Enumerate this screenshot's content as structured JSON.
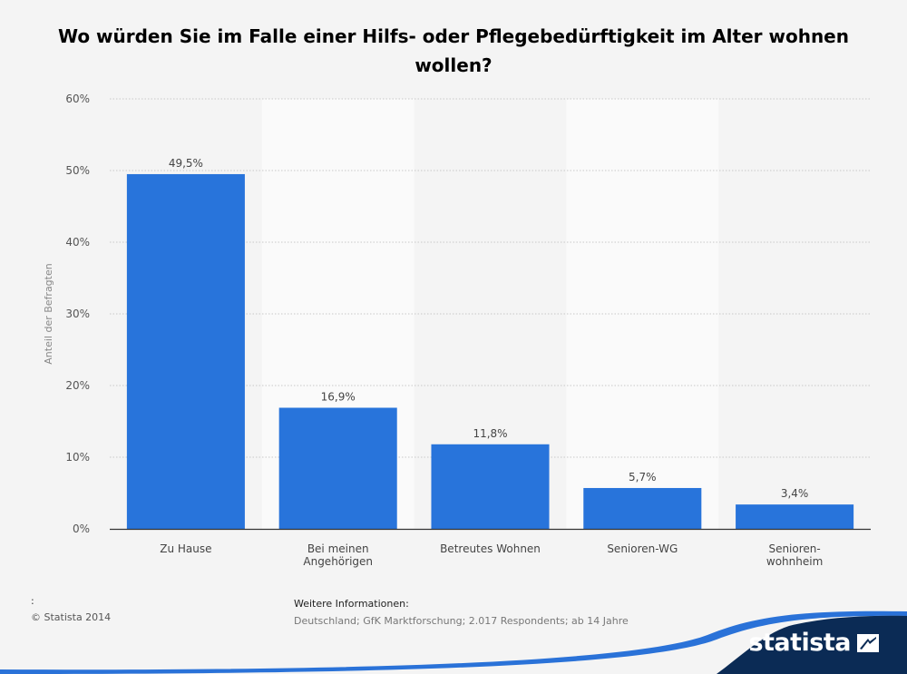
{
  "chart_data": {
    "type": "bar",
    "title": "Wo würden Sie im Falle einer Hilfs- oder Pflegebedürftigkeit im Alter wohnen wollen?",
    "ylabel": "Anteil der Befragten",
    "xlabel": "",
    "ylim": [
      0,
      60
    ],
    "yticks": [
      0,
      10,
      20,
      30,
      40,
      50,
      60
    ],
    "ytick_labels": [
      "0%",
      "10%",
      "20%",
      "30%",
      "40%",
      "50%",
      "60%"
    ],
    "categories": [
      [
        "Zu Hause"
      ],
      [
        "Bei meinen",
        "Angehörigen"
      ],
      [
        "Betreutes Wohnen"
      ],
      [
        "Senioren-WG"
      ],
      [
        "Senioren-",
        "wohnheim"
      ]
    ],
    "values": [
      49.5,
      16.9,
      11.8,
      5.7,
      3.4
    ],
    "value_labels": [
      "49,5%",
      "16,9%",
      "11,8%",
      "5,7%",
      "3,4%"
    ],
    "grid": true,
    "bar_color": "#2874db"
  },
  "footer": {
    "source_mark": ":",
    "copyright": "© Statista 2014",
    "info_title": "Weitere Informationen:",
    "info_text": "Deutschland; GfK Marktforschung; 2.017 Respondents; ab 14 Jahre"
  },
  "brand": {
    "name": "statista",
    "icon": "statista-logo-icon",
    "color": "#0b2b55",
    "accent": "#2a72d8"
  }
}
